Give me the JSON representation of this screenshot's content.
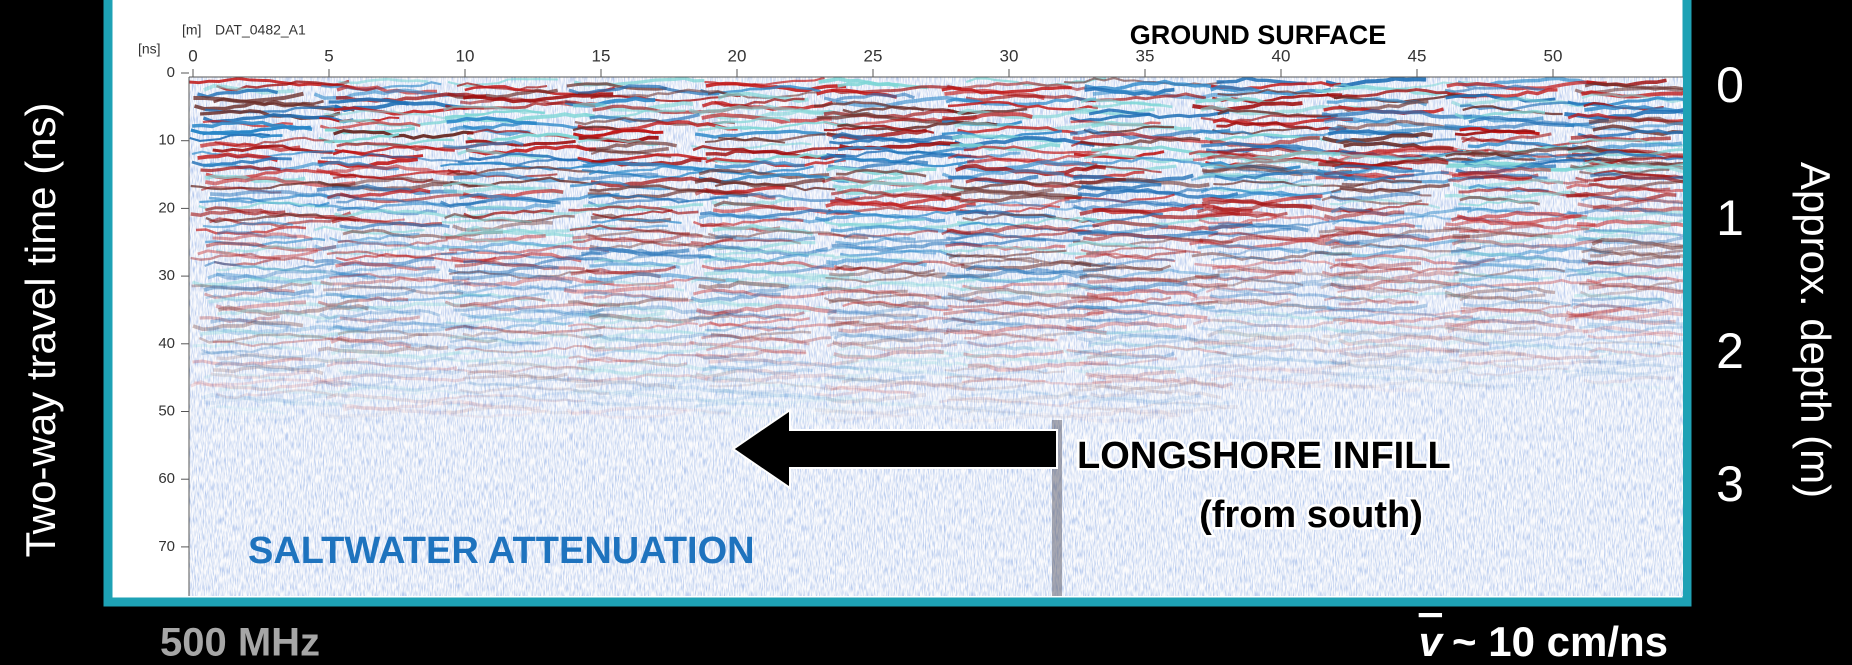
{
  "header": {
    "distance_unit": "[m]",
    "file": "DAT_0482_A1",
    "time_unit": "[ns]"
  },
  "axes": {
    "time_label": "Two-way travel time (ns)",
    "time_ticks": [
      0,
      10,
      20,
      30,
      40,
      50,
      60,
      70
    ],
    "distance_ticks": [
      0,
      5,
      10,
      15,
      20,
      25,
      30,
      35,
      40,
      45,
      50
    ],
    "depth_label": "Approx. depth (m)",
    "depth_ticks": [
      0,
      1,
      2,
      3
    ]
  },
  "annotations": {
    "surface": "GROUND SURFACE",
    "infill": "LONGSHORE INFILL",
    "infill_note": "(from south)",
    "attenuation": "SALTWATER ATTENUATION"
  },
  "footer": {
    "frequency": "500 MHz",
    "velocity_symbol": "v",
    "velocity": "~ 10 cm/ns"
  }
}
